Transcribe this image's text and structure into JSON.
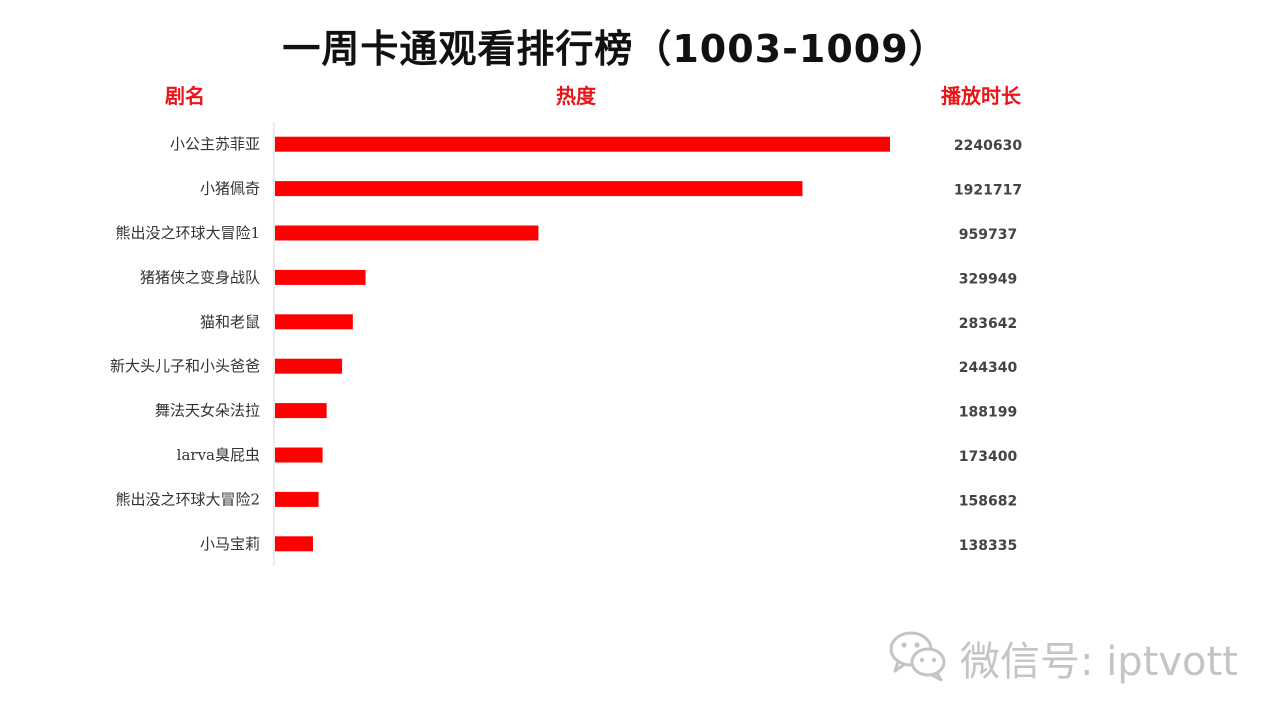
{
  "title": "一周卡通观看排行榜（1003-1009）",
  "headers": {
    "name": "剧名",
    "heat": "热度",
    "duration": "播放时长"
  },
  "watermark": {
    "text": "微信号: iptvott",
    "icon": "wechat-icon"
  },
  "colors": {
    "bar": "#ff0000",
    "header": "#e8151b",
    "watermark": "#c4c4c4"
  },
  "chart_data": {
    "type": "bar",
    "orientation": "horizontal",
    "title": "一周卡通观看排行榜（1003-1009）",
    "xlabel": "热度",
    "ylabel": "剧名",
    "value_label_header": "播放时长",
    "categories": [
      "小公主苏菲亚",
      "小猪佩奇",
      "熊出没之环球大冒险1",
      "猪猪侠之变身战队",
      "猫和老鼠",
      "新大头儿子和小头爸爸",
      "舞法天女朵法拉",
      "larva臭屁虫",
      "熊出没之环球大冒险2",
      "小马宝莉"
    ],
    "values": [
      2240630,
      1921717,
      959737,
      329949,
      283642,
      244340,
      188199,
      173400,
      158682,
      138335
    ],
    "value_labels": [
      "2240630",
      "1921717",
      "959737",
      "329949",
      "283642",
      "244340",
      "188199",
      "173400",
      "158682",
      "138335"
    ],
    "xlim": [
      0,
      2240630
    ],
    "grid": false,
    "legend": "none"
  }
}
